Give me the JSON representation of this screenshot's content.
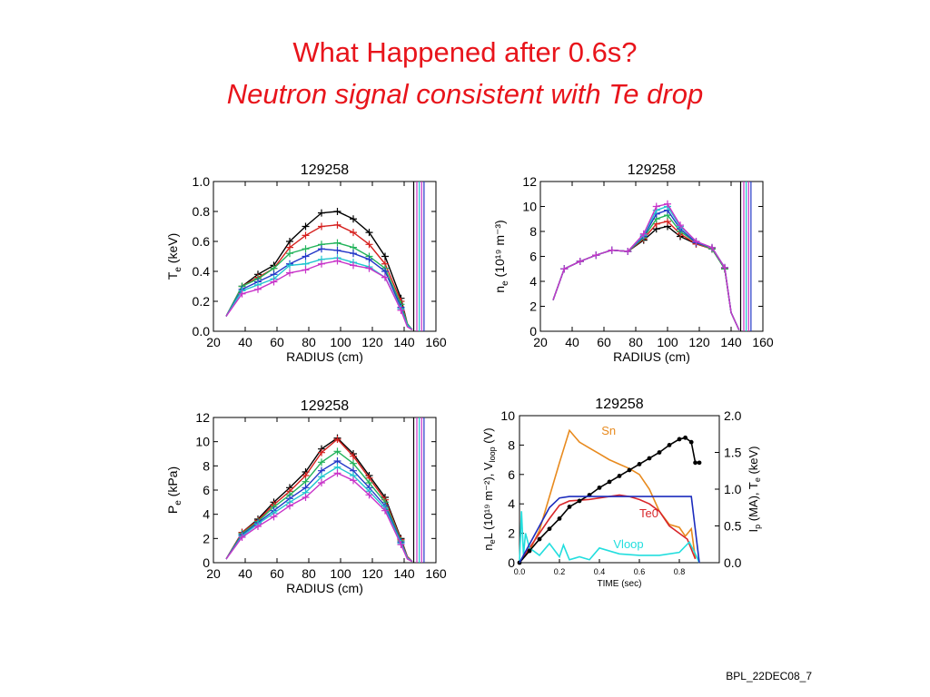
{
  "title_line1": "What Happened after 0.6s?",
  "title_line2": "Neutron signal consistent with Te drop",
  "footer": "BPL_22DEC08_7",
  "profile_colors": [
    "#000000",
    "#d6201e",
    "#22b35a",
    "#2438c8",
    "#21c6cf",
    "#c832c8"
  ],
  "chart_data": [
    {
      "type": "line",
      "title": "129258",
      "xlabel": "RADIUS (cm)",
      "ylabel_main": "T",
      "ylabel_sub": "e",
      "ylabel_unit": " (keV)",
      "xlim": [
        20,
        160
      ],
      "ylim": [
        0,
        1.0
      ],
      "xticks": [
        20,
        40,
        60,
        80,
        100,
        120,
        140,
        160
      ],
      "xtick_labels": [
        "20",
        "40",
        "60",
        "80",
        "100",
        "120",
        "140",
        "160"
      ],
      "yticks": [
        0,
        0.2,
        0.4,
        0.6,
        0.8,
        1.0
      ],
      "ytick_labels": [
        "0.0",
        "0.2",
        "0.4",
        "0.6",
        "0.8",
        "1.0"
      ],
      "x": [
        28,
        38,
        48,
        58,
        68,
        78,
        88,
        98,
        108,
        118,
        128,
        138,
        142,
        145
      ],
      "series": [
        {
          "values": [
            0.1,
            0.3,
            0.38,
            0.44,
            0.6,
            0.7,
            0.79,
            0.8,
            0.75,
            0.66,
            0.5,
            0.22,
            0.05,
            0.01
          ]
        },
        {
          "values": [
            0.1,
            0.3,
            0.36,
            0.42,
            0.56,
            0.64,
            0.7,
            0.71,
            0.66,
            0.58,
            0.45,
            0.2,
            0.05,
            0.01
          ]
        },
        {
          "values": [
            0.1,
            0.3,
            0.35,
            0.42,
            0.52,
            0.55,
            0.58,
            0.59,
            0.56,
            0.5,
            0.42,
            0.18,
            0.05,
            0.01
          ]
        },
        {
          "values": [
            0.1,
            0.28,
            0.33,
            0.38,
            0.45,
            0.5,
            0.55,
            0.54,
            0.52,
            0.48,
            0.4,
            0.16,
            0.04,
            0.01
          ]
        },
        {
          "values": [
            0.1,
            0.27,
            0.31,
            0.35,
            0.44,
            0.45,
            0.48,
            0.49,
            0.46,
            0.43,
            0.36,
            0.15,
            0.04,
            0.01
          ]
        },
        {
          "values": [
            0.1,
            0.25,
            0.28,
            0.33,
            0.39,
            0.41,
            0.45,
            0.47,
            0.44,
            0.42,
            0.36,
            0.14,
            0.03,
            0.01
          ]
        }
      ]
    },
    {
      "type": "line",
      "title": "129258",
      "xlabel": "RADIUS (cm)",
      "ylabel_main": "n",
      "ylabel_sub": "e",
      "ylabel_unit": " (10¹⁹ m⁻³)",
      "xlim": [
        20,
        160
      ],
      "ylim": [
        0,
        12
      ],
      "xticks": [
        20,
        40,
        60,
        80,
        100,
        120,
        140,
        160
      ],
      "xtick_labels": [
        "20",
        "40",
        "60",
        "80",
        "100",
        "120",
        "140",
        "160"
      ],
      "yticks": [
        0,
        2,
        4,
        6,
        8,
        10,
        12
      ],
      "ytick_labels": [
        "0",
        "2",
        "4",
        "6",
        "8",
        "10",
        "12"
      ],
      "x": [
        28,
        35,
        45,
        55,
        65,
        75,
        85,
        93,
        100,
        108,
        118,
        128,
        136,
        140,
        145
      ],
      "series": [
        {
          "values": [
            2.5,
            5.0,
            5.6,
            6.1,
            6.5,
            6.4,
            7.3,
            8.2,
            8.4,
            7.6,
            7.0,
            6.6,
            5.0,
            1.5,
            0.1
          ]
        },
        {
          "values": [
            2.5,
            5.0,
            5.6,
            6.1,
            6.5,
            6.4,
            7.4,
            8.6,
            8.8,
            7.8,
            7.0,
            6.6,
            5.0,
            1.5,
            0.1
          ]
        },
        {
          "values": [
            2.5,
            5.0,
            5.6,
            6.1,
            6.5,
            6.4,
            7.5,
            9.0,
            9.3,
            8.0,
            7.1,
            6.6,
            5.0,
            1.5,
            0.1
          ]
        },
        {
          "values": [
            2.5,
            5.0,
            5.6,
            6.1,
            6.5,
            6.4,
            7.6,
            9.4,
            9.7,
            8.2,
            7.1,
            6.7,
            5.1,
            1.5,
            0.1
          ]
        },
        {
          "values": [
            2.5,
            5.0,
            5.6,
            6.1,
            6.5,
            6.4,
            7.7,
            9.7,
            10.0,
            8.4,
            7.2,
            6.7,
            5.1,
            1.5,
            0.1
          ]
        },
        {
          "values": [
            2.5,
            5.0,
            5.6,
            6.1,
            6.5,
            6.4,
            7.8,
            10.0,
            10.2,
            8.5,
            7.2,
            6.7,
            5.1,
            1.5,
            0.1
          ]
        }
      ]
    },
    {
      "type": "line",
      "title": "129258",
      "xlabel": "RADIUS (cm)",
      "ylabel_main": "P",
      "ylabel_sub": "e",
      "ylabel_unit": " (kPa)",
      "xlim": [
        20,
        160
      ],
      "ylim": [
        0,
        12
      ],
      "xticks": [
        20,
        40,
        60,
        80,
        100,
        120,
        140,
        160
      ],
      "xtick_labels": [
        "20",
        "40",
        "60",
        "80",
        "100",
        "120",
        "140",
        "160"
      ],
      "yticks": [
        0,
        2,
        4,
        6,
        8,
        10,
        12
      ],
      "ytick_labels": [
        "0",
        "2",
        "4",
        "6",
        "8",
        "10",
        "12"
      ],
      "x": [
        28,
        38,
        48,
        58,
        68,
        78,
        88,
        98,
        108,
        118,
        128,
        138,
        142,
        145
      ],
      "series": [
        {
          "values": [
            0.3,
            2.5,
            3.6,
            5.0,
            6.2,
            7.5,
            9.4,
            10.3,
            9.0,
            7.2,
            5.4,
            2.0,
            0.5,
            0.1
          ]
        },
        {
          "values": [
            0.3,
            2.5,
            3.5,
            4.8,
            5.9,
            7.2,
            9.1,
            10.2,
            8.8,
            7.0,
            5.2,
            1.9,
            0.5,
            0.1
          ]
        },
        {
          "values": [
            0.3,
            2.4,
            3.4,
            4.6,
            5.6,
            6.7,
            8.3,
            9.2,
            8.2,
            6.6,
            5.0,
            1.8,
            0.4,
            0.1
          ]
        },
        {
          "values": [
            0.3,
            2.3,
            3.3,
            4.3,
            5.3,
            6.2,
            7.6,
            8.4,
            7.6,
            6.2,
            4.7,
            1.7,
            0.4,
            0.1
          ]
        },
        {
          "values": [
            0.3,
            2.2,
            3.2,
            4.1,
            5.0,
            5.8,
            7.1,
            7.9,
            7.2,
            5.9,
            4.5,
            1.6,
            0.4,
            0.1
          ]
        },
        {
          "values": [
            0.3,
            2.1,
            3.0,
            3.8,
            4.7,
            5.4,
            6.6,
            7.4,
            6.8,
            5.6,
            4.3,
            1.5,
            0.3,
            0.1
          ]
        }
      ]
    },
    {
      "type": "line",
      "title": "129258",
      "xlabel": "TIME (sec)",
      "ylabel_left": "n L (10¹⁹ m⁻²), V    (V)",
      "ylabel_left_sub_e": "e",
      "ylabel_left_sub_loop": "loop",
      "ylabel_right": "I  (MA), T  (keV)",
      "ylabel_right_sub_p": "p",
      "ylabel_right_sub_e": "e",
      "xlim": [
        0,
        1.0
      ],
      "ylim": [
        0,
        10
      ],
      "ylim_right": [
        0,
        2.0
      ],
      "xticks": [
        0,
        0.2,
        0.4,
        0.6,
        0.8
      ],
      "xtick_labels": [
        "0.0",
        "0.2",
        "0.4",
        "0.6",
        "0.8"
      ],
      "yticks": [
        0,
        2,
        4,
        6,
        8,
        10
      ],
      "ytick_labels": [
        "0",
        "2",
        "4",
        "6",
        "8",
        "10"
      ],
      "yticks_right": [
        0,
        0.5,
        1.0,
        1.5,
        2.0
      ],
      "ytick_labels_right": [
        "0.0",
        "0.5",
        "1.0",
        "1.5",
        "2.0"
      ],
      "series": [
        {
          "name": "Sn",
          "color": "#e88a1e",
          "axis": "left",
          "x": [
            0.0,
            0.05,
            0.1,
            0.15,
            0.2,
            0.25,
            0.3,
            0.35,
            0.4,
            0.45,
            0.5,
            0.55,
            0.6,
            0.65,
            0.7,
            0.75,
            0.8,
            0.83,
            0.86,
            0.88
          ],
          "y": [
            0.0,
            0.8,
            2.2,
            4.5,
            6.8,
            9.0,
            8.2,
            7.8,
            7.4,
            7.0,
            6.7,
            6.4,
            6.0,
            5.0,
            3.5,
            2.6,
            2.4,
            1.8,
            2.3,
            0.3
          ]
        },
        {
          "name": "Te0",
          "color": "#d8262a",
          "axis": "right",
          "x": [
            0.0,
            0.05,
            0.1,
            0.15,
            0.2,
            0.25,
            0.3,
            0.35,
            0.4,
            0.45,
            0.5,
            0.55,
            0.6,
            0.65,
            0.7,
            0.75,
            0.8,
            0.84,
            0.88
          ],
          "y": [
            0.0,
            0.2,
            0.4,
            0.6,
            0.78,
            0.84,
            0.85,
            0.86,
            0.88,
            0.9,
            0.92,
            0.9,
            0.86,
            0.8,
            0.7,
            0.5,
            0.4,
            0.32,
            0.05
          ]
        },
        {
          "name": "Vloop",
          "color": "#22dede",
          "axis": "left",
          "x": [
            0.0,
            0.01,
            0.02,
            0.03,
            0.05,
            0.08,
            0.1,
            0.15,
            0.2,
            0.22,
            0.25,
            0.3,
            0.35,
            0.4,
            0.5,
            0.6,
            0.7,
            0.8,
            0.85,
            0.88,
            0.9
          ],
          "y": [
            0.0,
            3.5,
            0.5,
            2.0,
            1.0,
            0.7,
            0.5,
            1.3,
            0.4,
            1.2,
            0.2,
            0.4,
            0.2,
            1.0,
            0.6,
            0.5,
            0.5,
            0.7,
            1.4,
            0.6,
            0.0
          ]
        },
        {
          "name": "",
          "color": "#000000",
          "axis": "left",
          "markers": true,
          "x": [
            0.0,
            0.05,
            0.1,
            0.15,
            0.2,
            0.25,
            0.3,
            0.35,
            0.4,
            0.45,
            0.5,
            0.55,
            0.6,
            0.65,
            0.7,
            0.75,
            0.8,
            0.83,
            0.86,
            0.88,
            0.9
          ],
          "y": [
            0.0,
            0.8,
            1.6,
            2.3,
            3.0,
            3.8,
            4.2,
            4.6,
            5.1,
            5.5,
            5.9,
            6.3,
            6.7,
            7.1,
            7.5,
            8.0,
            8.4,
            8.5,
            8.2,
            6.8,
            6.8
          ]
        },
        {
          "name": "",
          "color": "#1c2cbd",
          "axis": "right",
          "x": [
            0.0,
            0.05,
            0.1,
            0.15,
            0.2,
            0.25,
            0.3,
            0.4,
            0.5,
            0.6,
            0.7,
            0.8,
            0.86,
            0.88,
            0.9
          ],
          "y": [
            0.0,
            0.25,
            0.5,
            0.75,
            0.88,
            0.9,
            0.9,
            0.9,
            0.9,
            0.9,
            0.9,
            0.9,
            0.9,
            0.45,
            0.0
          ]
        }
      ]
    }
  ]
}
